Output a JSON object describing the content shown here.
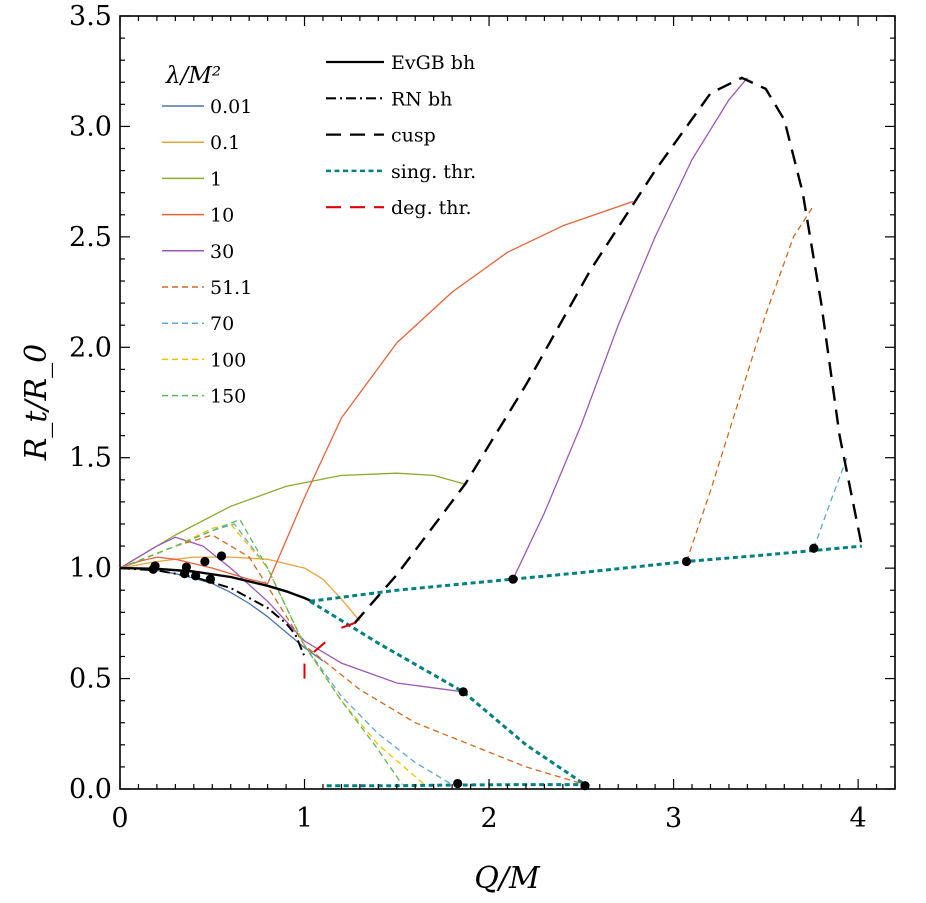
{
  "chart_data": {
    "type": "line",
    "title": "",
    "xlabel": "Q/M",
    "ylabel": "R_t/R_0",
    "xlim": [
      0,
      4.2
    ],
    "ylim": [
      0,
      3.5
    ],
    "x_ticks": [
      0,
      1,
      2,
      3,
      4
    ],
    "x_tick_labels": [
      "0",
      "1",
      "2",
      "3",
      "4"
    ],
    "y_ticks": [
      0,
      0.5,
      1,
      1.5,
      2,
      2.5,
      3,
      3.5
    ],
    "y_tick_labels": [
      "0.0",
      "0.5",
      "1.0",
      "1.5",
      "2.0",
      "2.5",
      "3.0",
      "3.5"
    ],
    "grid": false,
    "legend_lambda": {
      "title": "λ/M²",
      "placement": "top-left",
      "entries": [
        {
          "label": "0.01",
          "color": "#4c72b0",
          "dash": "solid"
        },
        {
          "label": "0.1",
          "color": "#e8a43a",
          "dash": "solid"
        },
        {
          "label": "1",
          "color": "#8aab2f",
          "dash": "solid"
        },
        {
          "label": "10",
          "color": "#e8623a",
          "dash": "solid"
        },
        {
          "label": "30",
          "color": "#9b59b6",
          "dash": "solid"
        },
        {
          "label": "51.1",
          "color": "#d2691e",
          "dash": "dashed"
        },
        {
          "label": "70",
          "color": "#5fa8d3",
          "dash": "dashed"
        },
        {
          "label": "100",
          "color": "#f2c200",
          "dash": "dashed"
        },
        {
          "label": "150",
          "color": "#5cb85c",
          "dash": "dashed"
        }
      ]
    },
    "legend_lines": {
      "placement": "top-center",
      "entries": [
        {
          "label": "EvGB bh",
          "color": "#000000",
          "dash": "solid"
        },
        {
          "label": "RN bh",
          "color": "#000000",
          "dash": "dashdot"
        },
        {
          "label": "cusp",
          "color": "#000000",
          "dash": "longdash"
        },
        {
          "label": "sing. thr.",
          "color": "#00807f",
          "dash": "dotted"
        },
        {
          "label": "deg. thr.",
          "color": "#e00000",
          "dash": "longdash"
        }
      ]
    },
    "series": [
      {
        "name": "0.01",
        "color": "#4c72b0",
        "dash": "solid",
        "width": 1.3,
        "x": [
          0,
          0.1,
          0.2,
          0.3,
          0.4,
          0.5,
          0.6,
          0.7,
          0.8,
          0.9,
          1.0,
          1.1
        ],
        "y": [
          1.0,
          0.997,
          0.99,
          0.975,
          0.955,
          0.93,
          0.89,
          0.84,
          0.78,
          0.71,
          0.64,
          0.58
        ]
      },
      {
        "name": "0.1",
        "color": "#e8a43a",
        "dash": "solid",
        "width": 1.3,
        "x": [
          0,
          0.2,
          0.4,
          0.6,
          0.8,
          1.0,
          1.1,
          1.2,
          1.3
        ],
        "y": [
          1.0,
          1.03,
          1.05,
          1.05,
          1.04,
          1.0,
          0.95,
          0.86,
          0.76
        ]
      },
      {
        "name": "1",
        "color": "#8aab2f",
        "dash": "solid",
        "width": 1.3,
        "x": [
          0,
          0.3,
          0.6,
          0.9,
          1.2,
          1.5,
          1.7,
          1.87
        ],
        "y": [
          1.0,
          1.15,
          1.28,
          1.37,
          1.42,
          1.43,
          1.42,
          1.38
        ]
      },
      {
        "name": "10",
        "color": "#e8623a",
        "dash": "solid",
        "width": 1.3,
        "x": [
          0,
          0.1,
          0.2,
          0.3,
          0.5,
          0.7,
          0.8,
          1.0,
          1.2,
          1.5,
          1.8,
          2.1,
          2.4,
          2.78
        ],
        "y": [
          1.0,
          1.03,
          1.05,
          1.04,
          1.0,
          0.95,
          0.93,
          1.32,
          1.68,
          2.02,
          2.25,
          2.43,
          2.55,
          2.66
        ]
      },
      {
        "name": "30",
        "color": "#9b59b6",
        "dash": "solid",
        "width": 1.3,
        "x": [
          0,
          0.2,
          0.3,
          0.45,
          0.6,
          0.8,
          1.0,
          1.2,
          1.5,
          1.86
        ],
        "y": [
          1.0,
          1.1,
          1.14,
          1.1,
          1.0,
          0.85,
          0.67,
          0.57,
          0.48,
          0.44
        ]
      },
      {
        "name": "30",
        "color": "#9b59b6",
        "dash": "solid",
        "width": 1.3,
        "x": [
          2.13,
          2.3,
          2.5,
          2.7,
          2.9,
          3.1,
          3.3,
          3.4
        ],
        "y": [
          0.95,
          1.25,
          1.65,
          2.1,
          2.5,
          2.85,
          3.12,
          3.22
        ]
      },
      {
        "name": "51.1",
        "color": "#d2691e",
        "dash": "dashed",
        "width": 1.3,
        "x": [
          0,
          0.3,
          0.5,
          0.7,
          1.0,
          1.3,
          1.6,
          1.9,
          2.2,
          2.52
        ],
        "y": [
          1.0,
          1.1,
          1.15,
          1.05,
          0.65,
          0.45,
          0.3,
          0.2,
          0.1,
          0.02
        ]
      },
      {
        "name": "51.1",
        "color": "#d2691e",
        "dash": "dashed",
        "width": 1.3,
        "x": [
          3.07,
          3.2,
          3.35,
          3.5,
          3.65,
          3.75
        ],
        "y": [
          1.03,
          1.35,
          1.75,
          2.15,
          2.5,
          2.63
        ]
      },
      {
        "name": "70",
        "color": "#5fa8d3",
        "dash": "dashed",
        "width": 1.3,
        "x": [
          0,
          0.3,
          0.5,
          0.62,
          0.8,
          1.0,
          1.2,
          1.4,
          1.6,
          1.8
        ],
        "y": [
          1.0,
          1.1,
          1.17,
          1.2,
          1.0,
          0.65,
          0.42,
          0.25,
          0.12,
          0.02
        ]
      },
      {
        "name": "70",
        "color": "#5fa8d3",
        "dash": "dashed",
        "width": 1.3,
        "x": [
          3.76,
          3.85,
          3.94
        ],
        "y": [
          1.09,
          1.3,
          1.5
        ]
      },
      {
        "name": "100",
        "color": "#f2c200",
        "dash": "dashed",
        "width": 1.3,
        "x": [
          0,
          0.3,
          0.5,
          0.6,
          0.8,
          1.0,
          1.2,
          1.4,
          1.65
        ],
        "y": [
          1.0,
          1.1,
          1.18,
          1.2,
          1.0,
          0.65,
          0.4,
          0.2,
          0.02
        ]
      },
      {
        "name": "150",
        "color": "#5cb85c",
        "dash": "dashed",
        "width": 1.3,
        "x": [
          0,
          0.3,
          0.5,
          0.65,
          0.8,
          1.0,
          1.2,
          1.38,
          1.53
        ],
        "y": [
          1.0,
          1.1,
          1.17,
          1.22,
          1.0,
          0.65,
          0.4,
          0.2,
          0.02
        ]
      },
      {
        "name": "EvGB bh",
        "color": "#000000",
        "dash": "solid",
        "width": 2.4,
        "x": [
          0,
          0.2,
          0.4,
          0.6,
          0.8,
          0.9,
          1.0,
          1.04
        ],
        "y": [
          1.0,
          0.997,
          0.985,
          0.96,
          0.92,
          0.895,
          0.865,
          0.85
        ]
      },
      {
        "name": "RN bh",
        "color": "#000000",
        "dash": "dashdot",
        "width": 2.0,
        "x": [
          0,
          0.2,
          0.4,
          0.6,
          0.8,
          0.9,
          0.95,
          1.0
        ],
        "y": [
          1.0,
          0.99,
          0.96,
          0.91,
          0.82,
          0.75,
          0.7,
          0.6
        ]
      },
      {
        "name": "cusp",
        "color": "#000000",
        "dash": "longdash",
        "width": 2.4,
        "x": [
          1.27,
          1.5,
          1.87,
          2.2,
          2.55,
          2.9,
          3.2,
          3.37,
          3.5,
          3.6,
          3.7,
          3.8,
          3.9,
          4.02
        ],
        "y": [
          0.75,
          0.97,
          1.38,
          1.83,
          2.35,
          2.8,
          3.15,
          3.22,
          3.17,
          3.03,
          2.7,
          2.2,
          1.6,
          1.1
        ]
      },
      {
        "name": "sing. thr.",
        "color": "#00807f",
        "dash": "dotted",
        "width": 3.0,
        "x": [
          1.03,
          1.5,
          2.0,
          2.5,
          3.07,
          3.5,
          4.02
        ],
        "y": [
          0.85,
          0.9,
          0.94,
          0.98,
          1.03,
          1.06,
          1.1
        ]
      },
      {
        "name": "sing. thr.",
        "color": "#00807f",
        "dash": "dotted",
        "width": 3.0,
        "x": [
          1.03,
          1.4,
          1.86,
          2.2,
          2.52
        ],
        "y": [
          0.85,
          0.66,
          0.44,
          0.2,
          0.02
        ]
      },
      {
        "name": "sing. thr.",
        "color": "#00807f",
        "dash": "dotted",
        "width": 3.0,
        "x": [
          1.12,
          1.5,
          1.83,
          2.2,
          2.52
        ],
        "y": [
          0.015,
          0.015,
          0.018,
          0.02,
          0.02
        ]
      },
      {
        "name": "deg. thr.",
        "color": "#e00000",
        "dash": "longdash",
        "width": 2.0,
        "x": [
          1.0,
          1.0
        ],
        "y": [
          0.5,
          0.58
        ]
      },
      {
        "name": "deg. thr.",
        "color": "#e00000",
        "dash": "longdash",
        "width": 2.0,
        "x": [
          1.05,
          1.12
        ],
        "y": [
          0.62,
          0.67
        ]
      },
      {
        "name": "deg. thr.",
        "color": "#e00000",
        "dash": "longdash",
        "width": 2.0,
        "x": [
          1.2,
          1.3
        ],
        "y": [
          0.73,
          0.76
        ]
      }
    ],
    "points": [
      {
        "x": 0.18,
        "y": 0.995
      },
      {
        "x": 0.19,
        "y": 1.01
      },
      {
        "x": 0.35,
        "y": 0.975
      },
      {
        "x": 0.36,
        "y": 1.005
      },
      {
        "x": 0.41,
        "y": 0.965
      },
      {
        "x": 0.46,
        "y": 1.03
      },
      {
        "x": 0.49,
        "y": 0.95
      },
      {
        "x": 0.55,
        "y": 1.055
      },
      {
        "x": 1.83,
        "y": 0.025
      },
      {
        "x": 1.86,
        "y": 0.44
      },
      {
        "x": 2.13,
        "y": 0.95
      },
      {
        "x": 2.52,
        "y": 0.015
      },
      {
        "x": 3.07,
        "y": 1.03
      },
      {
        "x": 3.76,
        "y": 1.09
      }
    ]
  }
}
